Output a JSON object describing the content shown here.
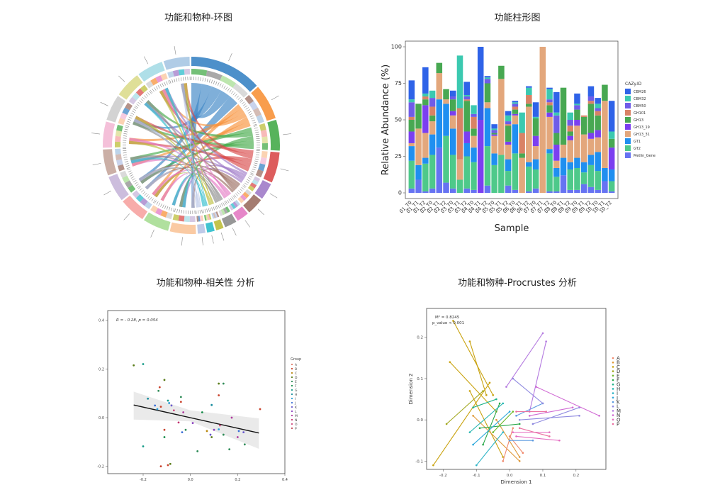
{
  "titles": {
    "chord": "功能和物种-环图",
    "bar": "功能柱形图",
    "corr": "功能和物种-相关性 分析",
    "procrustes": "功能和物种-Procrustes 分析"
  },
  "chart_data": [
    {
      "type": "chord",
      "title": "功能和物种-环图",
      "sector_colors": [
        "#3a84c4",
        "#f7923a",
        "#45ab4a",
        "#d94b4b",
        "#a07bc8",
        "#9b6e62",
        "#e37ac3",
        "#8c8c8c",
        "#bcbd3a",
        "#2bbccb",
        "#b7c4e6",
        "#f9c499",
        "#a7dd93",
        "#f6a3a1",
        "#c7b6d9",
        "#c5a69c",
        "#f3b9d5",
        "#cecece",
        "#dbdb8d",
        "#a6dce5",
        "#a7c6e3"
      ],
      "sector_sizes": [
        16,
        8,
        7,
        7,
        4,
        4,
        3,
        3,
        2,
        2,
        2,
        6,
        6,
        6,
        6,
        6,
        6,
        6,
        6,
        6,
        6
      ],
      "labels_legible": false
    },
    {
      "type": "bar",
      "title": "功能柱形图",
      "xlabel": "Sample",
      "ylabel": "Relative Abundance (%)",
      "ylim": [
        0,
        100
      ],
      "yticks": [
        "0",
        "25",
        "50",
        "75",
        "100"
      ],
      "legend_title": "CAZy.ID",
      "legend_position": "right",
      "categories": [
        "01_T0",
        "01_T1",
        "01_T2",
        "02_T0",
        "02_T1",
        "02_T2",
        "03_T0",
        "03_T1",
        "03_T2",
        "04_T0",
        "04_T1",
        "04_T2",
        "05_T0",
        "05_T1",
        "05_T2",
        "06_T0",
        "06_T1",
        "06_T2",
        "07_T0",
        "07_T1",
        "07_T2",
        "08_T0",
        "08_T1",
        "08_T2",
        "09_T0",
        "09_T1",
        "09_T2",
        "10_T0",
        "10_T1",
        "10_T2"
      ],
      "series": [
        {
          "name": "Metlin_Gene",
          "color": "#6673f2",
          "values": [
            3,
            9,
            1,
            3,
            31,
            7,
            3,
            0,
            3,
            2,
            0,
            5,
            0,
            0,
            5,
            2,
            0,
            1,
            3,
            0,
            1,
            1,
            12,
            2,
            2,
            6,
            4,
            2,
            8,
            1
          ]
        },
        {
          "name": "GT2",
          "color": "#4ec98a",
          "values": [
            19,
            0,
            19,
            23,
            0,
            32,
            23,
            9,
            22,
            19,
            0,
            27,
            19,
            26,
            10,
            25,
            0,
            17,
            13,
            0,
            26,
            10,
            0,
            14,
            15,
            8,
            15,
            13,
            0,
            7
          ]
        },
        {
          "name": "GT1",
          "color": "#1f8ff0",
          "values": [
            10,
            10,
            4,
            14,
            33,
            22,
            18,
            0,
            9,
            10,
            0,
            26,
            8,
            0,
            8,
            20,
            0,
            3,
            7,
            0,
            3,
            6,
            12,
            5,
            7,
            7,
            7,
            13,
            9,
            8
          ]
        },
        {
          "name": "GH13_31",
          "color": "#e3a77c",
          "values": [
            2,
            25,
            17,
            9,
            18,
            3,
            9,
            14,
            0,
            8,
            0,
            4,
            12,
            52,
            10,
            6,
            24,
            38,
            9,
            100,
            22,
            5,
            9,
            15,
            22,
            19,
            11,
            10,
            46,
            0
          ]
        },
        {
          "name": "GH13_19",
          "color": "#7b3ff0",
          "values": [
            8,
            0,
            19,
            0,
            0,
            0,
            3,
            0,
            8,
            0,
            50,
            0,
            1,
            0,
            2,
            1,
            0,
            0,
            7,
            0,
            3,
            11,
            0,
            3,
            4,
            0,
            4,
            5,
            0,
            15
          ]
        },
        {
          "name": "GH13",
          "color": "#48a852",
          "values": [
            8,
            17,
            4,
            4,
            7,
            7,
            8,
            0,
            21,
            5,
            0,
            13,
            1,
            9,
            11,
            3,
            3,
            2,
            12,
            0,
            5,
            8,
            39,
            3,
            7,
            12,
            20,
            10,
            11,
            6
          ]
        },
        {
          "name": "GH101",
          "color": "#d98265",
          "values": [
            2,
            0,
            2,
            6,
            0,
            0,
            0,
            35,
            1,
            8,
            0,
            0,
            0,
            0,
            1,
            2,
            14,
            6,
            0,
            0,
            2,
            0,
            0,
            4,
            0,
            1,
            2,
            3,
            0,
            0
          ]
        },
        {
          "name": "CBM50",
          "color": "#6f5ce8",
          "values": [
            10,
            0,
            0,
            6,
            0,
            0,
            2,
            0,
            2,
            2,
            0,
            3,
            2,
            0,
            2,
            2,
            0,
            0,
            0,
            0,
            2,
            12,
            0,
            4,
            3,
            0,
            3,
            2,
            0,
            0
          ]
        },
        {
          "name": "CBM32",
          "color": "#3bc9b0",
          "values": [
            2,
            0,
            2,
            5,
            0,
            0,
            0,
            36,
            1,
            6,
            0,
            1,
            1,
            0,
            4,
            1,
            14,
            5,
            1,
            0,
            7,
            2,
            0,
            5,
            1,
            0,
            0,
            3,
            0,
            5
          ]
        },
        {
          "name": "CBM26",
          "color": "#2f63e8",
          "values": [
            13,
            0,
            18,
            0,
            0,
            0,
            4,
            0,
            9,
            0,
            50,
            1,
            3,
            0,
            3,
            1,
            0,
            1,
            10,
            0,
            1,
            14,
            0,
            0,
            7,
            0,
            7,
            4,
            0,
            21
          ]
        }
      ]
    },
    {
      "type": "scatter",
      "title": "功能和物种-相关性 分析",
      "annotation": "R = - 0.28, p = 0.054",
      "xlim": [
        -0.35,
        0.4
      ],
      "ylim": [
        -0.23,
        0.44
      ],
      "xticks": [
        "-0.2",
        "0.0",
        "0.2",
        "0.4"
      ],
      "yticks": [
        "-0.2",
        "0.0",
        "0.2",
        "0.4"
      ],
      "legend_title": "Group",
      "legend_position": "right",
      "groups": [
        "A",
        "B",
        "C",
        "D",
        "E",
        "F",
        "G",
        "H",
        "I",
        "J",
        "K",
        "L",
        "M",
        "N",
        "O",
        "P"
      ],
      "group_colors": [
        "#e07b6a",
        "#c9422c",
        "#b8860b",
        "#5a7d1a",
        "#2e8b57",
        "#138a46",
        "#169b88",
        "#178c9e",
        "#2b9fd6",
        "#3a6fd6",
        "#6a5acd",
        "#8a3fbf",
        "#b03a9f",
        "#c2306e",
        "#d04a7e",
        "#c24a56"
      ],
      "regression": {
        "x": [
          -0.24,
          0.29
        ],
        "y": [
          0.052,
          -0.063
        ]
      },
      "points": [
        {
          "x": -0.24,
          "y": 0.215,
          "g": "D"
        },
        {
          "x": -0.2,
          "y": 0.22,
          "g": "G"
        },
        {
          "x": -0.11,
          "y": 0.155,
          "g": "D"
        },
        {
          "x": -0.13,
          "y": 0.125,
          "g": "B"
        },
        {
          "x": -0.135,
          "y": 0.11,
          "g": "E"
        },
        {
          "x": -0.18,
          "y": 0.078,
          "g": "H"
        },
        {
          "x": -0.095,
          "y": 0.07,
          "g": "G"
        },
        {
          "x": -0.09,
          "y": 0.06,
          "g": "I"
        },
        {
          "x": -0.15,
          "y": 0.05,
          "g": "J"
        },
        {
          "x": -0.125,
          "y": 0.045,
          "g": "B"
        },
        {
          "x": -0.14,
          "y": 0.035,
          "g": "I"
        },
        {
          "x": -0.08,
          "y": 0.05,
          "g": "K"
        },
        {
          "x": -0.07,
          "y": 0.03,
          "g": "O"
        },
        {
          "x": -0.04,
          "y": 0.085,
          "g": "E"
        },
        {
          "x": -0.04,
          "y": 0.065,
          "g": "B"
        },
        {
          "x": -0.03,
          "y": 0.022,
          "g": "M"
        },
        {
          "x": -0.05,
          "y": -0.02,
          "g": "N"
        },
        {
          "x": 0.01,
          "y": -0.022,
          "g": "L"
        },
        {
          "x": 0.05,
          "y": 0.022,
          "g": "F"
        },
        {
          "x": 0.12,
          "y": 0.14,
          "g": "D"
        },
        {
          "x": 0.14,
          "y": 0.14,
          "g": "E"
        },
        {
          "x": 0.12,
          "y": 0.092,
          "g": "B"
        },
        {
          "x": 0.09,
          "y": 0.052,
          "g": "H"
        },
        {
          "x": -0.11,
          "y": -0.05,
          "g": "B"
        },
        {
          "x": -0.11,
          "y": -0.08,
          "g": "F"
        },
        {
          "x": -0.035,
          "y": -0.06,
          "g": "J"
        },
        {
          "x": -0.02,
          "y": -0.05,
          "g": "E"
        },
        {
          "x": 0.07,
          "y": -0.055,
          "g": "C"
        },
        {
          "x": 0.085,
          "y": -0.07,
          "g": "K"
        },
        {
          "x": 0.09,
          "y": -0.08,
          "g": "D"
        },
        {
          "x": 0.1,
          "y": -0.05,
          "g": "L"
        },
        {
          "x": 0.12,
          "y": -0.048,
          "g": "I"
        },
        {
          "x": 0.125,
          "y": -0.032,
          "g": "O"
        },
        {
          "x": 0.14,
          "y": -0.07,
          "g": "E"
        },
        {
          "x": 0.175,
          "y": 0.0,
          "g": "M"
        },
        {
          "x": 0.205,
          "y": -0.055,
          "g": "J"
        },
        {
          "x": 0.225,
          "y": -0.06,
          "g": "K"
        },
        {
          "x": 0.2,
          "y": -0.08,
          "g": "M"
        },
        {
          "x": 0.23,
          "y": -0.11,
          "g": "E"
        },
        {
          "x": 0.295,
          "y": 0.035,
          "g": "B"
        },
        {
          "x": -0.2,
          "y": -0.118,
          "g": "G"
        },
        {
          "x": 0.03,
          "y": -0.138,
          "g": "E"
        },
        {
          "x": 0.165,
          "y": -0.13,
          "g": "E"
        },
        {
          "x": -0.125,
          "y": -0.2,
          "g": "B"
        },
        {
          "x": -0.095,
          "y": -0.195,
          "g": "B"
        },
        {
          "x": -0.085,
          "y": -0.19,
          "g": "D"
        }
      ]
    },
    {
      "type": "scatter",
      "title": "功能和物种-Procrustes 分析",
      "annotation_lines": [
        "M² = 0.8245",
        "p_value < 0.001"
      ],
      "xlabel": "Dimension 1",
      "ylabel": "Dimension 2",
      "xlim": [
        -0.25,
        0.29
      ],
      "ylim": [
        -0.12,
        0.27
      ],
      "xticks": [
        "-0.2",
        "-0.1",
        "0.0",
        "0.1",
        "0.2"
      ],
      "yticks": [
        "-0.1",
        "0.0",
        "0.1",
        "0.2"
      ],
      "legend_position": "right",
      "groups": [
        "A",
        "B",
        "C",
        "D",
        "E",
        "F",
        "G",
        "H",
        "I",
        "J",
        "K",
        "L",
        "M",
        "N",
        "O",
        "P"
      ],
      "group_colors": [
        "#f08a6e",
        "#e09a3a",
        "#c9a20e",
        "#a3a820",
        "#6cb82a",
        "#2aa84a",
        "#20b38a",
        "#22b5b0",
        "#2cb4c6",
        "#2ca8dc",
        "#5c9ae0",
        "#8f8ae0",
        "#b47ae0",
        "#d06ad4",
        "#e46ac0",
        "#ea70a0"
      ],
      "segments": [
        {
          "g": "C",
          "x1": -0.17,
          "y1": 0.24,
          "x2": -0.05,
          "y2": 0.06
        },
        {
          "g": "C",
          "x1": -0.12,
          "y1": 0.19,
          "x2": -0.07,
          "y2": 0.06
        },
        {
          "g": "C",
          "x1": -0.18,
          "y1": 0.14,
          "x2": -0.04,
          "y2": 0.02
        },
        {
          "g": "C",
          "x1": -0.23,
          "y1": -0.11,
          "x2": -0.06,
          "y2": 0.09
        },
        {
          "g": "D",
          "x1": -0.19,
          "y1": -0.01,
          "x2": -0.08,
          "y2": 0.07
        },
        {
          "g": "C",
          "x1": -0.12,
          "y1": 0.07,
          "x2": -0.02,
          "y2": -0.09
        },
        {
          "g": "B",
          "x1": -0.11,
          "y1": 0.01,
          "x2": 0.03,
          "y2": -0.1
        },
        {
          "g": "B",
          "x1": -0.04,
          "y1": 0.0,
          "x2": 0.03,
          "y2": -0.09
        },
        {
          "g": "A",
          "x1": -0.02,
          "y1": -0.1,
          "x2": 0.01,
          "y2": -0.02
        },
        {
          "g": "A",
          "x1": 0.04,
          "y1": -0.08,
          "x2": 0.0,
          "y2": -0.04
        },
        {
          "g": "F",
          "x1": -0.09,
          "y1": -0.02,
          "x2": 0.03,
          "y2": -0.01
        },
        {
          "g": "F",
          "x1": -0.08,
          "y1": -0.06,
          "x2": -0.03,
          "y2": 0.04
        },
        {
          "g": "E",
          "x1": -0.05,
          "y1": -0.03,
          "x2": 0.01,
          "y2": 0.02
        },
        {
          "g": "G",
          "x1": -0.11,
          "y1": 0.03,
          "x2": -0.04,
          "y2": 0.05
        },
        {
          "g": "H",
          "x1": -0.12,
          "y1": -0.03,
          "x2": -0.02,
          "y2": 0.04
        },
        {
          "g": "I",
          "x1": -0.1,
          "y1": -0.11,
          "x2": -0.02,
          "y2": -0.03
        },
        {
          "g": "J",
          "x1": -0.11,
          "y1": -0.06,
          "x2": 0.0,
          "y2": 0.02
        },
        {
          "g": "K",
          "x1": 0.0,
          "y1": -0.05,
          "x2": 0.07,
          "y2": -0.05
        },
        {
          "g": "K",
          "x1": 0.02,
          "y1": 0.01,
          "x2": 0.1,
          "y2": 0.04
        },
        {
          "g": "L",
          "x1": 0.01,
          "y1": 0.1,
          "x2": 0.1,
          "y2": 0.04
        },
        {
          "g": "L",
          "x1": 0.03,
          "y1": 0.0,
          "x2": 0.21,
          "y2": 0.01
        },
        {
          "g": "L",
          "x1": 0.07,
          "y1": -0.01,
          "x2": 0.21,
          "y2": 0.03
        },
        {
          "g": "M",
          "x1": -0.01,
          "y1": 0.08,
          "x2": 0.1,
          "y2": 0.21
        },
        {
          "g": "M",
          "x1": 0.06,
          "y1": 0.02,
          "x2": 0.11,
          "y2": 0.19
        },
        {
          "g": "N",
          "x1": 0.08,
          "y1": 0.08,
          "x2": 0.27,
          "y2": 0.01
        },
        {
          "g": "N",
          "x1": 0.06,
          "y1": 0.01,
          "x2": 0.19,
          "y2": 0.03
        },
        {
          "g": "O",
          "x1": 0.01,
          "y1": -0.03,
          "x2": 0.12,
          "y2": -0.03
        },
        {
          "g": "O",
          "x1": 0.02,
          "y1": -0.04,
          "x2": 0.15,
          "y2": -0.05
        },
        {
          "g": "P",
          "x1": 0.03,
          "y1": -0.02,
          "x2": 0.12,
          "y2": -0.04
        },
        {
          "g": "P",
          "x1": 0.02,
          "y1": 0.02,
          "x2": 0.11,
          "y2": 0.02
        }
      ]
    }
  ]
}
